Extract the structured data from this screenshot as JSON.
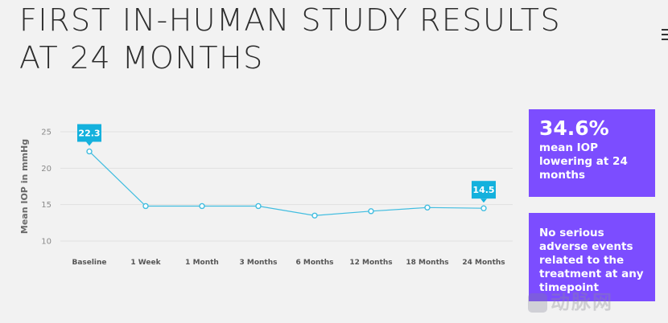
{
  "title": {
    "line1": "FIRST IN-HUMAN STUDY RESULTS",
    "line2": "AT 24 MONTHS"
  },
  "chart_data": {
    "type": "line",
    "categories": [
      "Baseline",
      "1 Week",
      "1 Month",
      "3 Months",
      "6 Months",
      "12 Months",
      "18 Months",
      "24 Months"
    ],
    "values": [
      22.3,
      14.8,
      14.8,
      14.8,
      13.5,
      14.1,
      14.6,
      14.5
    ],
    "ylabel": "Mean IOP in mmHg",
    "xlabel": "",
    "ylim": [
      10,
      25
    ],
    "yticks": [
      10,
      15,
      20,
      25
    ],
    "grid": true,
    "callouts": [
      {
        "index": 0,
        "label": "22.3"
      },
      {
        "index": 7,
        "label": "14.5"
      }
    ],
    "colors": {
      "line": "#41bde0",
      "callout": "#14b1dd",
      "grid": "#e0e0e0"
    }
  },
  "cards": [
    {
      "big": "34.6%",
      "text": "mean IOP lowering at 24 months"
    },
    {
      "big": "",
      "text": "No serious adverse events related to the treatment at any timepoint"
    }
  ],
  "colors": {
    "card": "#7c4dff",
    "background": "#f2f2f2"
  },
  "watermark": "动脉网"
}
